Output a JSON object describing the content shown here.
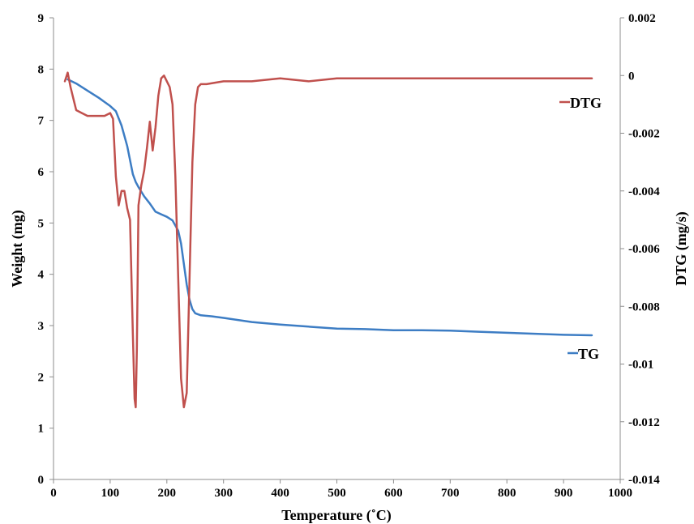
{
  "chart_data": {
    "type": "line",
    "xlabel": "Temperature (˚C)",
    "ylabel_left": "Weight (mg)",
    "ylabel_right": "DTG (mg/s)",
    "xlim": [
      0,
      1000
    ],
    "ylim_left": [
      0,
      9
    ],
    "ylim_right": [
      -0.014,
      0.002
    ],
    "x_ticks": [
      "0",
      "100",
      "200",
      "300",
      "400",
      "500",
      "600",
      "700",
      "800",
      "900",
      "1000"
    ],
    "y_left_ticks": [
      "0",
      "1",
      "2",
      "3",
      "4",
      "5",
      "6",
      "7",
      "8",
      "9"
    ],
    "y_right_ticks": [
      "-0.014",
      "-0.012",
      "-0.01",
      "-0.008",
      "-0.006",
      "-0.004",
      "-0.002",
      "0",
      "0.002"
    ],
    "grid": false,
    "series": [
      {
        "name": "TG",
        "legend_label": "TG",
        "axis": "left",
        "color": "#3d7dc4",
        "x": [
          25,
          40,
          60,
          80,
          100,
          110,
          120,
          130,
          140,
          145,
          150,
          160,
          170,
          180,
          190,
          200,
          210,
          220,
          225,
          230,
          235,
          240,
          245,
          250,
          255,
          260,
          280,
          300,
          350,
          400,
          450,
          500,
          550,
          600,
          650,
          700,
          750,
          800,
          850,
          900,
          950
        ],
        "y": [
          7.8,
          7.72,
          7.58,
          7.44,
          7.28,
          7.18,
          6.9,
          6.5,
          5.95,
          5.8,
          5.7,
          5.52,
          5.38,
          5.22,
          5.17,
          5.12,
          5.05,
          4.85,
          4.6,
          4.2,
          3.8,
          3.5,
          3.32,
          3.24,
          3.22,
          3.2,
          3.18,
          3.15,
          3.07,
          3.02,
          2.98,
          2.94,
          2.93,
          2.91,
          2.91,
          2.9,
          2.88,
          2.86,
          2.84,
          2.82,
          2.81
        ]
      },
      {
        "name": "DTG",
        "legend_label": "DTG",
        "axis": "right",
        "color": "#c0504d",
        "x": [
          20,
          25,
          30,
          35,
          40,
          50,
          60,
          70,
          80,
          90,
          100,
          105,
          110,
          115,
          120,
          125,
          130,
          135,
          140,
          143,
          145,
          147,
          150,
          155,
          160,
          165,
          170,
          175,
          180,
          185,
          190,
          195,
          200,
          205,
          210,
          215,
          220,
          225,
          230,
          235,
          240,
          245,
          250,
          255,
          260,
          270,
          300,
          350,
          400,
          450,
          500,
          550,
          600,
          650,
          700,
          750,
          800,
          850,
          900,
          950
        ],
        "y": [
          -0.0002,
          0.0001,
          -0.0004,
          -0.0008,
          -0.0012,
          -0.0013,
          -0.0014,
          -0.0014,
          -0.0014,
          -0.0014,
          -0.0013,
          -0.0015,
          -0.0035,
          -0.0045,
          -0.004,
          -0.004,
          -0.0046,
          -0.005,
          -0.009,
          -0.0112,
          -0.0115,
          -0.0095,
          -0.0045,
          -0.0038,
          -0.0033,
          -0.0025,
          -0.0016,
          -0.0026,
          -0.0018,
          -0.0007,
          -0.0001,
          0.0,
          -0.0002,
          -0.0004,
          -0.001,
          -0.0035,
          -0.007,
          -0.0105,
          -0.0115,
          -0.011,
          -0.007,
          -0.003,
          -0.001,
          -0.0004,
          -0.0003,
          -0.0003,
          -0.0002,
          -0.0002,
          -0.0001,
          -0.0002,
          -0.0001,
          -0.0001,
          -0.0001,
          -0.0001,
          -0.0001,
          -0.0001,
          -0.0001,
          -0.0001,
          -0.0001,
          -0.0001
        ]
      }
    ]
  }
}
